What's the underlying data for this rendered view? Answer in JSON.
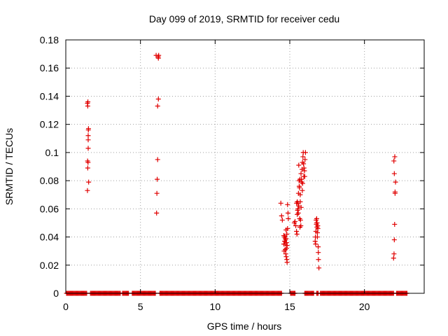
{
  "chart_data": {
    "type": "scatter",
    "title": "Day 099 of 2019, SRMTID for receiver cedu",
    "xlabel": "GPS time / hours",
    "ylabel": "SRMTID / TECUs",
    "xlim": [
      0,
      24
    ],
    "ylim": [
      0,
      0.18
    ],
    "xticks": [
      0,
      5,
      10,
      15,
      20
    ],
    "xtick_labels": [
      "0",
      "5",
      "10",
      "15",
      "20"
    ],
    "yticks": [
      0,
      0.02,
      0.04,
      0.06,
      0.08,
      0.1,
      0.12,
      0.14,
      0.16,
      0.18
    ],
    "ytick_labels": [
      "0",
      "0.02",
      "0.04",
      "0.06",
      "0.08",
      "0.1",
      "0.12",
      "0.14",
      "0.16",
      "0.18"
    ],
    "grid": true,
    "marker": "+",
    "color": "#e00000",
    "baseline_segments": [
      [
        0.05,
        1.4
      ],
      [
        1.65,
        3.65
      ],
      [
        3.8,
        4.2
      ],
      [
        4.45,
        6.0
      ],
      [
        6.3,
        14.45
      ],
      [
        15.05,
        15.35
      ],
      [
        16.0,
        16.6
      ],
      [
        16.8,
        16.9
      ],
      [
        17.05,
        21.95
      ],
      [
        22.15,
        22.85
      ]
    ],
    "baseline_step": 0.05,
    "series": [
      {
        "name": "SRMTID",
        "x": [
          1.45,
          1.47,
          1.49,
          1.5,
          1.5,
          1.51,
          1.52,
          1.47,
          1.45,
          1.48,
          1.5,
          1.53,
          1.46,
          6.1,
          6.12,
          6.15,
          6.15,
          6.2,
          6.2,
          6.18,
          6.08,
          6.05,
          6.22,
          14.4,
          14.45,
          14.5,
          14.6,
          14.65,
          14.68,
          14.7,
          14.72,
          14.73,
          14.75,
          14.75,
          14.76,
          14.78,
          14.8,
          14.8,
          14.82,
          14.85,
          14.85,
          14.88,
          14.9,
          14.6,
          14.62,
          14.65,
          14.7,
          14.78,
          14.82,
          15.3,
          15.35,
          15.4,
          15.45,
          15.5,
          15.5,
          15.55,
          15.55,
          15.6,
          15.6,
          15.62,
          15.65,
          15.68,
          15.7,
          15.7,
          15.72,
          15.75,
          15.78,
          15.8,
          15.82,
          15.85,
          15.88,
          15.9,
          15.92,
          15.95,
          16.0,
          16.02,
          16.05,
          15.58,
          15.63,
          15.52,
          15.48,
          15.68,
          15.74,
          15.86,
          15.98,
          15.45,
          15.57,
          15.66,
          15.76,
          15.84,
          15.94,
          16.7,
          16.72,
          16.75,
          16.78,
          16.8,
          16.8,
          16.82,
          16.85,
          16.85,
          16.88,
          16.9,
          16.92,
          16.95,
          16.76,
          16.83,
          16.87,
          16.73,
          16.91,
          21.95,
          21.98,
          22.0,
          22.02,
          22.05,
          22.05,
          22.08,
          22.0,
          21.97,
          22.03
        ],
        "y": [
          0.073,
          0.089,
          0.093,
          0.103,
          0.109,
          0.116,
          0.117,
          0.133,
          0.135,
          0.136,
          0.112,
          0.079,
          0.094,
          0.071,
          0.081,
          0.095,
          0.133,
          0.138,
          0.167,
          0.168,
          0.057,
          0.169,
          0.169,
          0.064,
          0.055,
          0.052,
          0.041,
          0.037,
          0.035,
          0.031,
          0.038,
          0.028,
          0.045,
          0.039,
          0.026,
          0.032,
          0.042,
          0.024,
          0.022,
          0.046,
          0.063,
          0.057,
          0.053,
          0.035,
          0.03,
          0.04,
          0.039,
          0.036,
          0.034,
          0.05,
          0.051,
          0.048,
          0.044,
          0.056,
          0.065,
          0.06,
          0.064,
          0.062,
          0.091,
          0.08,
          0.075,
          0.081,
          0.065,
          0.07,
          0.052,
          0.085,
          0.081,
          0.079,
          0.088,
          0.093,
          0.097,
          0.1,
          0.092,
          0.089,
          0.083,
          0.095,
          0.1,
          0.071,
          0.076,
          0.059,
          0.042,
          0.047,
          0.048,
          0.078,
          0.087,
          0.064,
          0.057,
          0.053,
          0.061,
          0.073,
          0.083,
          0.037,
          0.04,
          0.044,
          0.049,
          0.05,
          0.053,
          0.047,
          0.043,
          0.04,
          0.046,
          0.033,
          0.024,
          0.018,
          0.052,
          0.05,
          0.048,
          0.035,
          0.029,
          0.025,
          0.028,
          0.038,
          0.049,
          0.071,
          0.072,
          0.079,
          0.085,
          0.094,
          0.097
        ]
      }
    ]
  }
}
